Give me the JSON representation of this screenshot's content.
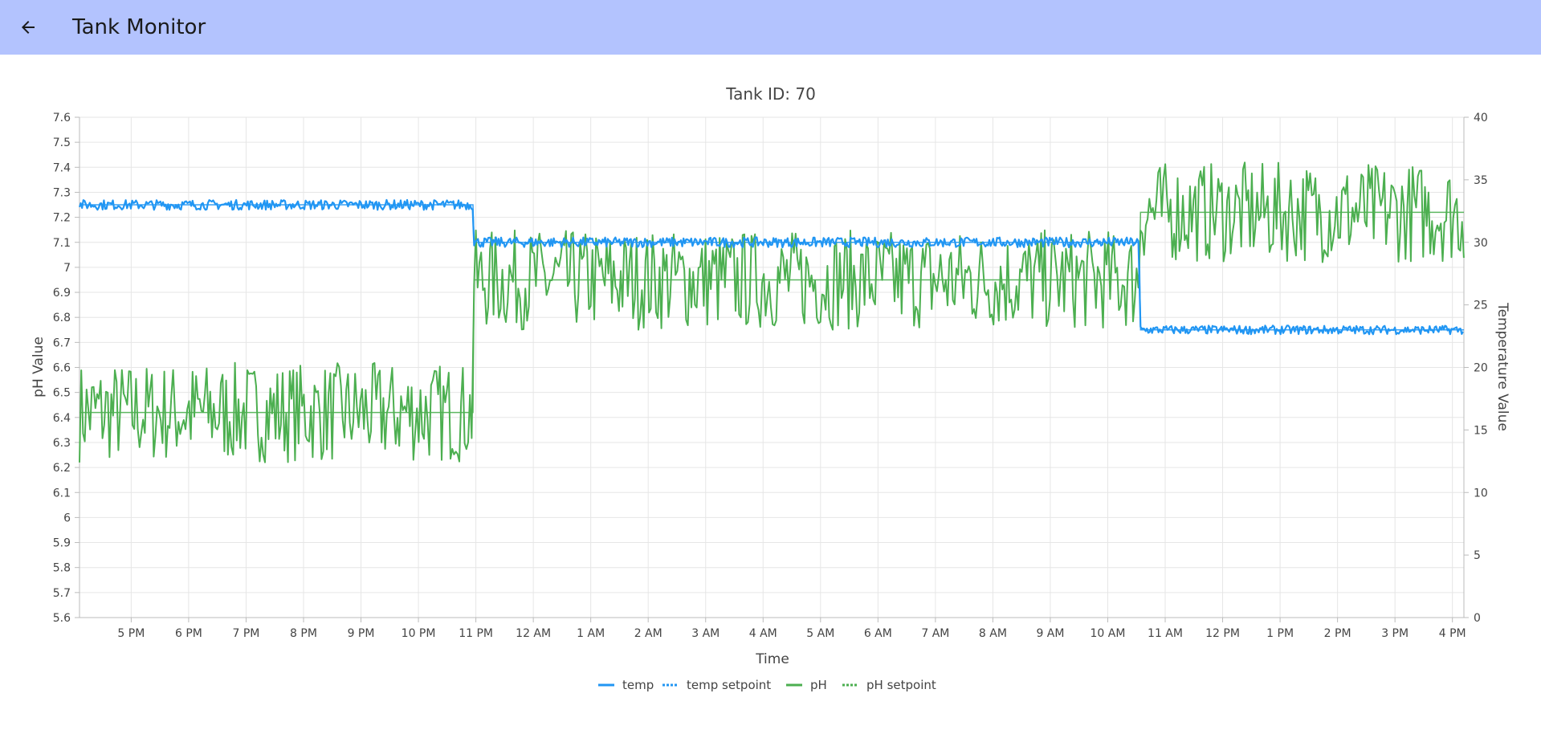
{
  "app_bar": {
    "title": "Tank Monitor",
    "back_icon": "arrow-left-icon",
    "background": "#b3c3fe"
  },
  "chart_data": {
    "type": "line",
    "title": "Tank ID: 70",
    "xlabel": "Time",
    "ylabel_left": "pH Value",
    "ylabel_right": "Temperature Value",
    "y_left_range": [
      5.6,
      7.6
    ],
    "y_left_ticks": [
      "7.6",
      "7.5",
      "7.4",
      "7.3",
      "7.2",
      "7.1",
      "7",
      "6.9",
      "6.8",
      "6.7",
      "6.6",
      "6.5",
      "6.4",
      "6.3",
      "6.2",
      "6.1",
      "6",
      "5.9",
      "5.8",
      "5.7",
      "5.6"
    ],
    "y_right_range": [
      0,
      40
    ],
    "y_right_ticks": [
      "40",
      "35",
      "30",
      "25",
      "20",
      "15",
      "10",
      "5",
      "0"
    ],
    "x_range_hours": [
      16.1,
      40.2
    ],
    "x_ticks": [
      {
        "label": "5 PM",
        "hour": 17
      },
      {
        "label": "6 PM",
        "hour": 18
      },
      {
        "label": "7 PM",
        "hour": 19
      },
      {
        "label": "8 PM",
        "hour": 20
      },
      {
        "label": "9 PM",
        "hour": 21
      },
      {
        "label": "10 PM",
        "hour": 22
      },
      {
        "label": "11 PM",
        "hour": 23
      },
      {
        "label": "12 AM",
        "hour": 24
      },
      {
        "label": "1 AM",
        "hour": 25
      },
      {
        "label": "2 AM",
        "hour": 26
      },
      {
        "label": "3 AM",
        "hour": 27
      },
      {
        "label": "4 AM",
        "hour": 28
      },
      {
        "label": "5 AM",
        "hour": 29
      },
      {
        "label": "6 AM",
        "hour": 30
      },
      {
        "label": "7 AM",
        "hour": 31
      },
      {
        "label": "8 AM",
        "hour": 32
      },
      {
        "label": "9 AM",
        "hour": 33
      },
      {
        "label": "10 AM",
        "hour": 34
      },
      {
        "label": "11 AM",
        "hour": 35
      },
      {
        "label": "12 PM",
        "hour": 36
      },
      {
        "label": "1 PM",
        "hour": 37
      },
      {
        "label": "2 PM",
        "hour": 38
      },
      {
        "label": "3 PM",
        "hour": 39
      },
      {
        "label": "4 PM",
        "hour": 40
      }
    ],
    "grid": true,
    "legend_position": "bottom-center",
    "series": [
      {
        "name": "temp",
        "axis": "right",
        "color": "#2196f3",
        "style": "solid",
        "segments": [
          {
            "start_hour": 16.1,
            "end_hour": 22.95,
            "mean": 33.0,
            "noise": 0.4
          },
          {
            "start_hour": 22.97,
            "end_hour": 34.55,
            "mean": 30.0,
            "noise": 0.4
          },
          {
            "start_hour": 34.57,
            "end_hour": 40.2,
            "mean": 23.0,
            "noise": 0.35
          }
        ]
      },
      {
        "name": "temp setpoint",
        "axis": "right",
        "color": "#2196f3",
        "style": "dotted",
        "segments": [
          {
            "start_hour": 16.1,
            "end_hour": 22.95,
            "value": 33.0
          },
          {
            "start_hour": 22.97,
            "end_hour": 34.55,
            "value": 30.0
          },
          {
            "start_hour": 34.57,
            "end_hour": 40.2,
            "value": 23.0
          }
        ]
      },
      {
        "name": "pH",
        "axis": "left",
        "color": "#4caf50",
        "style": "solid",
        "segments": [
          {
            "start_hour": 16.1,
            "end_hour": 22.95,
            "mean": 6.42,
            "noise": 0.2
          },
          {
            "start_hour": 22.97,
            "end_hour": 34.55,
            "mean": 6.95,
            "noise": 0.2
          },
          {
            "start_hour": 34.57,
            "end_hour": 40.2,
            "mean": 7.22,
            "noise": 0.2
          }
        ]
      },
      {
        "name": "pH setpoint",
        "axis": "left",
        "color": "#4caf50",
        "style": "dotted",
        "segments": [
          {
            "start_hour": 16.1,
            "end_hour": 22.95,
            "value": 6.42
          },
          {
            "start_hour": 22.97,
            "end_hour": 34.55,
            "value": 6.95
          },
          {
            "start_hour": 34.57,
            "end_hour": 40.2,
            "value": 7.22
          }
        ]
      }
    ]
  }
}
